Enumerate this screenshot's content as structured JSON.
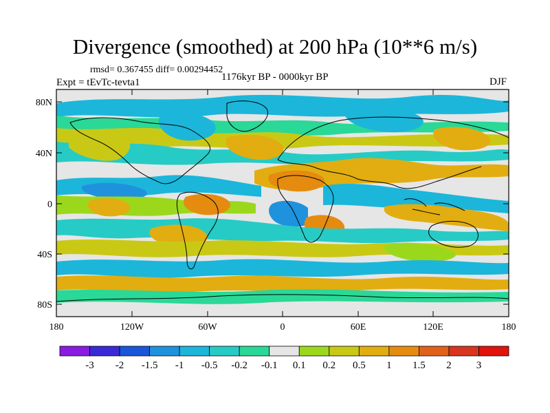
{
  "title": "Divergence (smoothed) at 200 hPa (10**6 m/s)",
  "stats": "rmsd= 0.367455 diff= 0.00294452",
  "period": "1176kyr BP - 0000kyr BP",
  "experiment": "Expt = tEvTc-tevta1",
  "season": "DJF",
  "lat_ticks": [
    "80N",
    "40N",
    "0",
    "40S",
    "80S"
  ],
  "lon_ticks": [
    "180",
    "120W",
    "60W",
    "0",
    "60E",
    "120E",
    "180"
  ],
  "colorbar": {
    "labels": [
      "-3",
      "-2",
      "-1.5",
      "-1",
      "-0.5",
      "-0.2",
      "-0.1",
      "0.1",
      "0.2",
      "0.5",
      "1",
      "1.5",
      "2",
      "3"
    ],
    "colors": [
      "#8a1be0",
      "#3a2ad6",
      "#1a57d8",
      "#1f92de",
      "#1cb6da",
      "#27cbc5",
      "#2ad897",
      "#e6e6e6",
      "#9bd81c",
      "#c9c915",
      "#e2ad10",
      "#e58b10",
      "#e2611a",
      "#d8341f",
      "#e0140c"
    ]
  }
}
